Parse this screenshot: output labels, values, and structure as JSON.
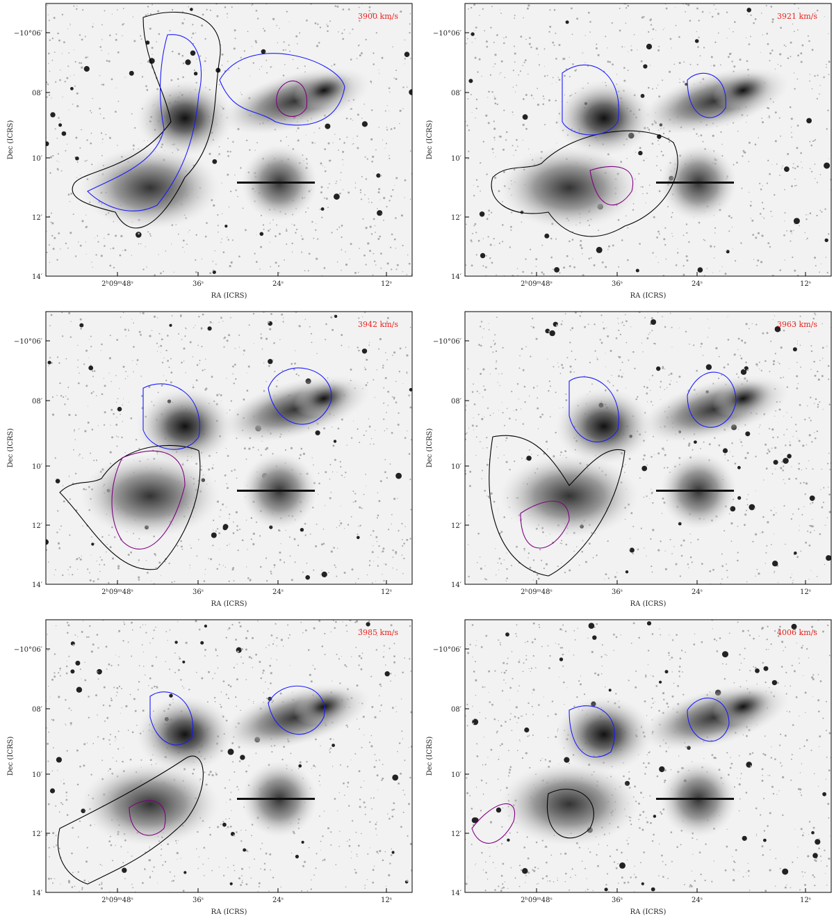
{
  "panels": [
    {
      "velocity": "3900 km/s",
      "y_label": "Dec (ICRS)",
      "x_label": "RA (ICRS)",
      "y_ticks": [
        "−10°06′",
        "08′",
        "10′",
        "12′",
        "14′"
      ],
      "x_ticks": [
        "2ʰ09ᵐ48ˢ",
        "36ˢ",
        "24ˢ",
        "12ˢ"
      ]
    },
    {
      "velocity": "3921 km/s",
      "y_label": "Dec (ICRS)",
      "x_label": "RA (ICRS)",
      "y_ticks": [
        "−10°06′",
        "08′",
        "10′",
        "12′",
        "14′"
      ],
      "x_ticks": [
        "2ʰ09ᵐ48ˢ",
        "36ˢ",
        "24ˢ",
        "12ˢ"
      ]
    },
    {
      "velocity": "3942 km/s",
      "y_label": "Dec (ICRS)",
      "x_label": "RA (ICRS)",
      "y_ticks": [
        "−10°06′",
        "08′",
        "10′",
        "12′",
        "14′"
      ],
      "x_ticks": [
        "2ʰ09ᵐ48ˢ",
        "36ˢ",
        "24ˢ",
        "12ˢ"
      ]
    },
    {
      "velocity": "3963 km/s",
      "y_label": "Dec (ICRS)",
      "x_label": "RA (ICRS)",
      "y_ticks": [
        "−10°06′",
        "08′",
        "10′",
        "12′",
        "14′"
      ],
      "x_ticks": [
        "2ʰ09ᵐ48ˢ",
        "36ˢ",
        "24ˢ",
        "12ˢ"
      ]
    },
    {
      "velocity": "3985 km/s",
      "y_label": "Dec (ICRS)",
      "x_label": "RA (ICRS)",
      "y_ticks": [
        "−10°06′",
        "08′",
        "10′",
        "12′",
        "14′"
      ],
      "x_ticks": [
        "2ʰ09ᵐ48ˢ",
        "36ˢ",
        "24ˢ",
        "12ˢ"
      ]
    },
    {
      "velocity": "4006 km/s",
      "y_label": "Dec (ICRS)",
      "x_label": "RA (ICRS)",
      "y_ticks": [
        "−10°06′",
        "08′",
        "10′",
        "12′",
        "14′"
      ],
      "x_ticks": [
        "2ʰ09ᵐ48ˢ",
        "36ˢ",
        "24ˢ",
        "12ˢ"
      ]
    }
  ]
}
